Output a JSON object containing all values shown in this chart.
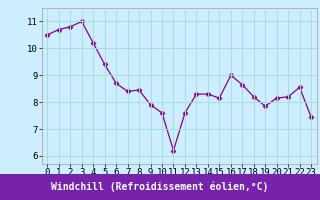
{
  "x": [
    0,
    1,
    2,
    3,
    4,
    5,
    6,
    7,
    8,
    9,
    10,
    11,
    12,
    13,
    14,
    15,
    16,
    17,
    18,
    19,
    20,
    21,
    22,
    23
  ],
  "y": [
    10.5,
    10.7,
    10.8,
    11.0,
    10.2,
    9.4,
    8.7,
    8.4,
    8.45,
    7.9,
    7.6,
    6.2,
    7.6,
    8.3,
    8.3,
    8.15,
    9.0,
    8.65,
    8.2,
    7.85,
    8.15,
    8.2,
    8.55,
    7.45
  ],
  "line_color": "#880088",
  "marker": "D",
  "marker_size": 2.5,
  "bg_color": "#cceeff",
  "grid_color": "#aadddd",
  "xlabel": "Windchill (Refroidissement éolien,°C)",
  "xlabel_bg": "#7722aa",
  "xlabel_color": "#ffffff",
  "ylabel_ticks": [
    6,
    7,
    8,
    9,
    10,
    11
  ],
  "ylim": [
    5.7,
    11.5
  ],
  "xlim": [
    -0.5,
    23.5
  ],
  "tick_fontsize": 6.5,
  "xlabel_fontsize": 7.0,
  "spine_color": "#aaaaaa"
}
